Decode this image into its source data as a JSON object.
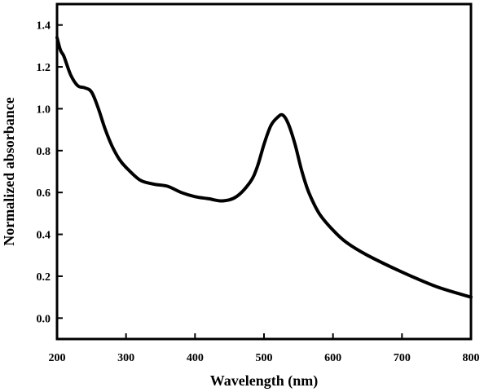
{
  "chart_data": {
    "type": "line",
    "title": "",
    "xlabel": "Wavelength (nm)",
    "ylabel": "Normalized absorbance",
    "xlim": [
      200,
      800
    ],
    "ylim": [
      -0.1,
      1.5
    ],
    "xticks": [
      200,
      300,
      400,
      500,
      600,
      700,
      800
    ],
    "xtick_labels": [
      "200",
      "300",
      "400",
      "500",
      "600",
      "700",
      "800"
    ],
    "yticks": [
      0.0,
      0.2,
      0.4,
      0.6,
      0.8,
      1.0,
      1.2,
      1.4
    ],
    "ytick_labels": [
      "0.0",
      "0.2",
      "0.4",
      "0.6",
      "0.8",
      "1.0",
      "1.2",
      "1.4"
    ],
    "grid": false,
    "line_color": "#000000",
    "series": [
      {
        "x": [
          200,
          205,
          210,
          220,
          230,
          240,
          250,
          260,
          270,
          280,
          290,
          300,
          320,
          340,
          360,
          380,
          400,
          420,
          440,
          460,
          480,
          490,
          500,
          510,
          520,
          527,
          535,
          545,
          555,
          565,
          580,
          600,
          620,
          650,
          700,
          750,
          800
        ],
        "y": [
          1.34,
          1.28,
          1.25,
          1.16,
          1.11,
          1.1,
          1.08,
          1.0,
          0.9,
          0.82,
          0.76,
          0.72,
          0.66,
          0.64,
          0.63,
          0.6,
          0.58,
          0.57,
          0.56,
          0.58,
          0.65,
          0.72,
          0.83,
          0.92,
          0.96,
          0.97,
          0.93,
          0.83,
          0.7,
          0.6,
          0.5,
          0.42,
          0.36,
          0.3,
          0.22,
          0.15,
          0.1
        ]
      }
    ]
  }
}
